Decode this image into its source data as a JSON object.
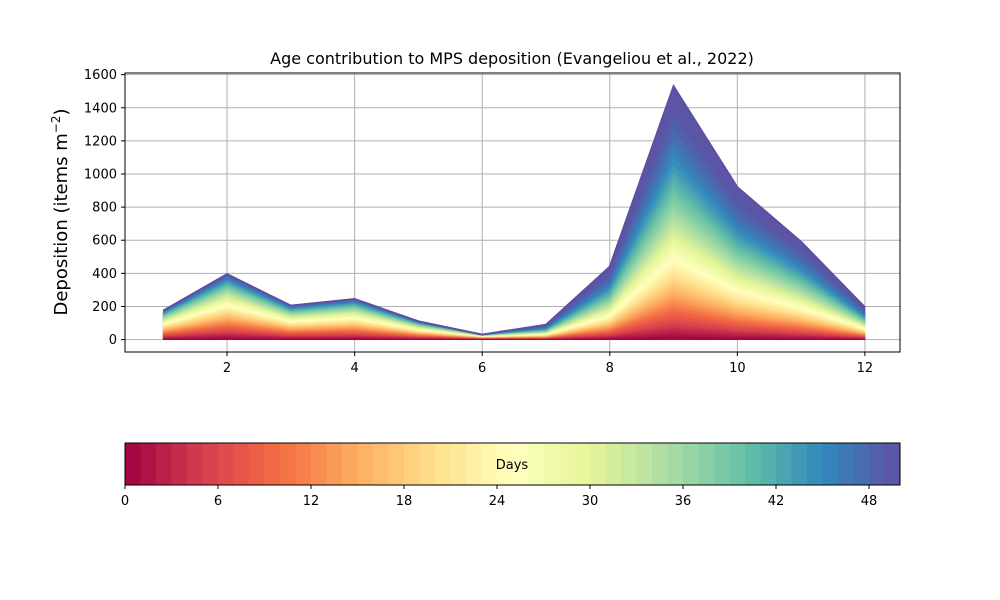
{
  "chart_data": {
    "type": "area",
    "title": "Age contribution to MPS deposition (Evangeliou et al., 2022)",
    "ylabel": "Deposition (items m",
    "ylabel_sup": "−2",
    "ylabel_close": ")",
    "xlabel": "",
    "x": [
      1,
      2,
      3,
      4,
      5,
      6,
      7,
      8,
      9,
      10,
      11,
      12
    ],
    "totals": [
      175,
      395,
      205,
      245,
      110,
      30,
      90,
      440,
      1530,
      920,
      590,
      195
    ],
    "ylim": [
      -75,
      1610
    ],
    "xlim": [
      0.4,
      12.55
    ],
    "yticks": [
      0,
      200,
      400,
      600,
      800,
      1000,
      1200,
      1400,
      1600
    ],
    "xticks": [
      2,
      4,
      6,
      8,
      10,
      12
    ],
    "grid": true,
    "colorbar": {
      "label": "Days",
      "range": [
        0,
        50
      ],
      "ticks": [
        0,
        6,
        12,
        18,
        24,
        30,
        36,
        42,
        48
      ],
      "n_levels": 50,
      "colormap": [
        "#9e0142",
        "#d53e4f",
        "#f46d43",
        "#fdae61",
        "#fee08b",
        "#ffffbf",
        "#e6f598",
        "#abdda4",
        "#66c2a5",
        "#3288bd",
        "#5e4fa2"
      ]
    }
  }
}
